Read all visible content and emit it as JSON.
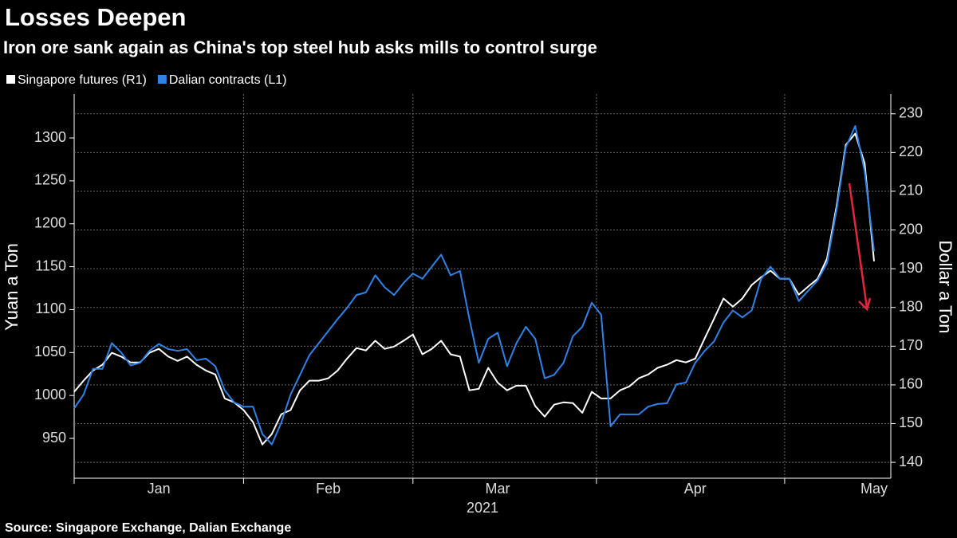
{
  "chart_data": {
    "type": "line",
    "title": "Losses Deepen",
    "subtitle": "Iron ore sank again as China's top steel hub asks mills to control surge",
    "source": "Source: Singapore Exchange, Dalian Exchange",
    "ylabel": "Yuan a Ton",
    "y2label": "Dollar a Ton",
    "xlabel": "2021",
    "categories": [
      null,
      null,
      null,
      null,
      null,
      null,
      null,
      null,
      null,
      "Jan",
      null,
      null,
      null,
      null,
      null,
      null,
      null,
      null,
      null,
      null,
      null,
      null,
      null,
      null,
      null,
      null,
      null,
      "Feb",
      null,
      null,
      null,
      null,
      null,
      null,
      null,
      null,
      null,
      null,
      null,
      null,
      null,
      null,
      null,
      null,
      null,
      "Mar",
      null,
      null,
      null,
      null,
      null,
      null,
      null,
      null,
      null,
      null,
      null,
      null,
      null,
      null,
      null,
      null,
      null,
      null,
      null,
      null,
      "Apr",
      null,
      null,
      null,
      null,
      null,
      null,
      null,
      null,
      null,
      null,
      null,
      null,
      null,
      null,
      null,
      null,
      null,
      null,
      "May"
    ],
    "ylim": [
      903.6,
      1351.1
    ],
    "yticks": [
      950,
      1000,
      1050,
      1100,
      1150,
      1200,
      1250,
      1300
    ],
    "y2lim": [
      135.9,
      235.1
    ],
    "y2ticks": [
      140,
      150,
      160,
      170,
      180,
      190,
      200,
      210,
      220,
      230
    ],
    "grid": true,
    "series": [
      {
        "name": "Singapore futures (R1)",
        "color": "#ffffff",
        "axis": "y2",
        "values": [
          158.2,
          161.1,
          163.7,
          165.2,
          168.3,
          167.3,
          165.8,
          165.8,
          168.3,
          169.3,
          167.3,
          166.2,
          167.3,
          165.2,
          163.7,
          162.7,
          156.5,
          155.5,
          153.5,
          150.4,
          144.6,
          147.3,
          152.4,
          153.5,
          158.6,
          161.1,
          161.1,
          161.7,
          163.7,
          166.8,
          169.5,
          168.9,
          171.4,
          169.3,
          169.9,
          171.4,
          173.0,
          167.9,
          169.3,
          171.4,
          167.9,
          167.3,
          158.6,
          159.0,
          164.4,
          160.6,
          158.6,
          159.8,
          159.8,
          154.5,
          151.8,
          154.9,
          155.5,
          155.3,
          152.8,
          158.2,
          156.5,
          156.5,
          158.6,
          159.6,
          161.7,
          162.7,
          164.4,
          165.2,
          166.4,
          165.8,
          166.8,
          172.0,
          177.1,
          182.3,
          180.2,
          182.3,
          185.8,
          187.8,
          189.5,
          187.4,
          187.4,
          183.3,
          185.4,
          187.4,
          192.6,
          205.9,
          222.0,
          224.9,
          217.2,
          191.9
        ]
      },
      {
        "name": "Dalian contracts (L1)",
        "color": "#2f83e8",
        "values": [
          985,
          1001,
          1031,
          1031,
          1061,
          1050,
          1035,
          1038,
          1052,
          1060,
          1054,
          1052,
          1054,
          1041,
          1043,
          1034,
          1006,
          992,
          987,
          987,
          955,
          943,
          968,
          1001,
          1024,
          1047,
          1061,
          1075,
          1089,
          1102,
          1117,
          1120,
          1140,
          1126,
          1117,
          1131,
          1142,
          1136,
          1150,
          1164,
          1140,
          1145,
          1089,
          1038,
          1066,
          1073,
          1034,
          1061,
          1080,
          1066,
          1020,
          1024,
          1038,
          1069,
          1080,
          1108,
          1094,
          964,
          978,
          978,
          978,
          987,
          990,
          991,
          1013,
          1015,
          1038,
          1052,
          1063,
          1085,
          1099,
          1091,
          1099,
          1136,
          1150,
          1136,
          1136,
          1110,
          1122,
          1134,
          1154,
          1215,
          1289,
          1314,
          1261,
          1168
        ]
      }
    ]
  }
}
